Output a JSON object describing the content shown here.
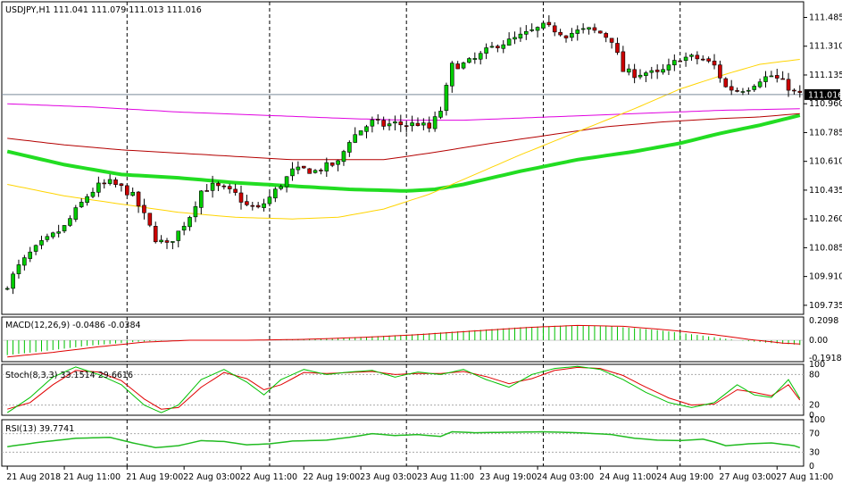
{
  "colors": {
    "background": "#ffffff",
    "frame": "#000000",
    "bull": "#00cc00",
    "bear": "#cc0000",
    "ma_fast": "#ffd400",
    "ma_mid": "#b40000",
    "ma_slow": "#e000e0",
    "ma_thick": "#22dd22",
    "price_line": "#7a8a9a",
    "macd_hist": "#00c000",
    "macd_signal": "#e00000",
    "stoch_main": "#00c000",
    "stoch_signal": "#e00000",
    "rsi": "#22bb22",
    "label_bg": "#000000",
    "label_fg": "#ffffff"
  },
  "chart_data": [
    {
      "type": "candlestick",
      "panel": "main",
      "header": "USDJPY,H1  111.041 111.079 111.013 111.016",
      "current_price_label": "111.016",
      "current_price": 111.016,
      "ylim": [
        109.68,
        111.58
      ],
      "y_ticks": [
        "111.485",
        "111.310",
        "111.135",
        "110.960",
        "110.785",
        "110.610",
        "110.435",
        "110.260",
        "110.085",
        "109.910",
        "109.735"
      ],
      "x_ticks": [
        "21 Aug 2018",
        "21 Aug 11:00",
        "21 Aug 19:00",
        "22 Aug 03:00",
        "22 Aug 11:00",
        "22 Aug 19:00",
        "23 Aug 03:00",
        "23 Aug 11:00",
        "23 Aug 19:00",
        "24 Aug 03:00",
        "24 Aug 11:00",
        "24 Aug 19:00",
        "27 Aug 03:00",
        "27 Aug 11:00"
      ],
      "candle_count": 140,
      "close_path": [
        [
          0,
          109.86
        ],
        [
          2,
          109.97
        ],
        [
          4,
          110.05
        ],
        [
          6,
          110.11
        ],
        [
          8,
          110.16
        ],
        [
          10,
          110.21
        ],
        [
          12,
          110.31
        ],
        [
          14,
          110.4
        ],
        [
          16,
          110.46
        ],
        [
          18,
          110.48
        ],
        [
          20,
          110.45
        ],
        [
          22,
          110.4
        ],
        [
          24,
          110.28
        ],
        [
          26,
          110.14
        ],
        [
          28,
          110.1
        ],
        [
          30,
          110.18
        ],
        [
          32,
          110.28
        ],
        [
          34,
          110.43
        ],
        [
          36,
          110.46
        ],
        [
          38,
          110.44
        ],
        [
          40,
          110.41
        ],
        [
          42,
          110.34
        ],
        [
          44,
          110.32
        ],
        [
          46,
          110.39
        ],
        [
          48,
          110.47
        ],
        [
          50,
          110.55
        ],
        [
          52,
          110.56
        ],
        [
          54,
          110.55
        ],
        [
          56,
          110.58
        ],
        [
          58,
          110.6
        ],
        [
          60,
          110.74
        ],
        [
          62,
          110.8
        ],
        [
          64,
          110.85
        ],
        [
          66,
          110.83
        ],
        [
          68,
          110.84
        ],
        [
          70,
          110.83
        ],
        [
          72,
          110.84
        ],
        [
          74,
          110.81
        ],
        [
          76,
          110.92
        ],
        [
          78,
          111.19
        ],
        [
          80,
          111.2
        ],
        [
          82,
          111.23
        ],
        [
          84,
          111.28
        ],
        [
          86,
          111.32
        ],
        [
          88,
          111.34
        ],
        [
          90,
          111.37
        ],
        [
          92,
          111.4
        ],
        [
          94,
          111.43
        ],
        [
          96,
          111.41
        ],
        [
          98,
          111.38
        ],
        [
          100,
          111.4
        ],
        [
          102,
          111.41
        ],
        [
          104,
          111.39
        ],
        [
          106,
          111.35
        ],
        [
          108,
          111.16
        ],
        [
          110,
          111.14
        ],
        [
          112,
          111.15
        ],
        [
          114,
          111.14
        ],
        [
          116,
          111.18
        ],
        [
          118,
          111.24
        ],
        [
          120,
          111.24
        ],
        [
          122,
          111.23
        ],
        [
          124,
          111.19
        ],
        [
          126,
          111.06
        ],
        [
          128,
          111.04
        ],
        [
          130,
          111.06
        ],
        [
          132,
          111.11
        ],
        [
          134,
          111.13
        ],
        [
          136,
          111.09
        ],
        [
          138,
          111.03
        ],
        [
          139,
          111.016
        ]
      ],
      "moving_averages": [
        {
          "color_key": "ma_thick",
          "points": [
            [
              0,
              110.67
            ],
            [
              10,
              110.59
            ],
            [
              20,
              110.53
            ],
            [
              30,
              110.51
            ],
            [
              40,
              110.48
            ],
            [
              50,
              110.46
            ],
            [
              60,
              110.44
            ],
            [
              70,
              110.43
            ],
            [
              75,
              110.44
            ],
            [
              80,
              110.47
            ],
            [
              90,
              110.55
            ],
            [
              100,
              110.62
            ],
            [
              110,
              110.67
            ],
            [
              118,
              110.72
            ],
            [
              125,
              110.78
            ],
            [
              132,
              110.83
            ],
            [
              139,
              110.89
            ]
          ]
        },
        {
          "color_key": "ma_mid",
          "points": [
            [
              0,
              110.75
            ],
            [
              10,
              110.71
            ],
            [
              20,
              110.68
            ],
            [
              30,
              110.66
            ],
            [
              40,
              110.64
            ],
            [
              50,
              110.62
            ],
            [
              60,
              110.62
            ],
            [
              66,
              110.62
            ],
            [
              74,
              110.66
            ],
            [
              85,
              110.72
            ],
            [
              95,
              110.77
            ],
            [
              105,
              110.82
            ],
            [
              115,
              110.85
            ],
            [
              125,
              110.87
            ],
            [
              132,
              110.88
            ],
            [
              139,
              110.9
            ]
          ]
        },
        {
          "color_key": "ma_slow",
          "points": [
            [
              0,
              110.96
            ],
            [
              15,
              110.94
            ],
            [
              30,
              110.91
            ],
            [
              45,
              110.89
            ],
            [
              60,
              110.87
            ],
            [
              70,
              110.86
            ],
            [
              80,
              110.86
            ],
            [
              95,
              110.88
            ],
            [
              110,
              110.9
            ],
            [
              125,
              110.92
            ],
            [
              139,
              110.93
            ]
          ]
        },
        {
          "color_key": "ma_fast",
          "points": [
            [
              0,
              110.47
            ],
            [
              10,
              110.4
            ],
            [
              20,
              110.35
            ],
            [
              30,
              110.3
            ],
            [
              40,
              110.27
            ],
            [
              50,
              110.26
            ],
            [
              58,
              110.27
            ],
            [
              66,
              110.32
            ],
            [
              74,
              110.41
            ],
            [
              82,
              110.53
            ],
            [
              90,
              110.65
            ],
            [
              100,
              110.79
            ],
            [
              110,
              110.93
            ],
            [
              118,
              111.05
            ],
            [
              126,
              111.14
            ],
            [
              132,
              111.2
            ],
            [
              139,
              111.23
            ]
          ]
        }
      ]
    },
    {
      "type": "macd_histogram",
      "panel": "macd",
      "header": "MACD(12,26,9) -0.0486 -0.0384",
      "y_ticks": [
        "0.2098",
        "0.00",
        "-0.1918"
      ],
      "ylim": [
        -0.23,
        0.25
      ],
      "hist_path": [
        [
          0,
          -0.16
        ],
        [
          6,
          -0.12
        ],
        [
          14,
          -0.06
        ],
        [
          22,
          -0.02
        ],
        [
          28,
          0.0
        ],
        [
          40,
          0.0
        ],
        [
          50,
          0.01
        ],
        [
          60,
          0.03
        ],
        [
          70,
          0.06
        ],
        [
          80,
          0.1
        ],
        [
          90,
          0.14
        ],
        [
          98,
          0.16
        ],
        [
          106,
          0.15
        ],
        [
          114,
          0.11
        ],
        [
          122,
          0.05
        ],
        [
          128,
          0.0
        ],
        [
          134,
          -0.03
        ],
        [
          139,
          -0.05
        ]
      ],
      "signal_path": [
        [
          0,
          -0.18
        ],
        [
          8,
          -0.13
        ],
        [
          16,
          -0.07
        ],
        [
          24,
          -0.02
        ],
        [
          32,
          0.0
        ],
        [
          42,
          0.0
        ],
        [
          52,
          0.01
        ],
        [
          62,
          0.03
        ],
        [
          72,
          0.06
        ],
        [
          82,
          0.1
        ],
        [
          92,
          0.14
        ],
        [
          100,
          0.16
        ],
        [
          108,
          0.15
        ],
        [
          116,
          0.11
        ],
        [
          124,
          0.06
        ],
        [
          130,
          0.01
        ],
        [
          136,
          -0.03
        ],
        [
          139,
          -0.04
        ]
      ]
    },
    {
      "type": "line",
      "panel": "stoch",
      "header": "Stoch(8,3,3) 33.1514 29.6616",
      "y_ticks": [
        "100",
        "80",
        "20",
        "0"
      ],
      "ylim": [
        0,
        100
      ],
      "levels": [
        80,
        20
      ],
      "main_path": [
        [
          0,
          5
        ],
        [
          4,
          35
        ],
        [
          8,
          75
        ],
        [
          12,
          95
        ],
        [
          16,
          80
        ],
        [
          20,
          60
        ],
        [
          24,
          20
        ],
        [
          27,
          5
        ],
        [
          30,
          20
        ],
        [
          34,
          70
        ],
        [
          38,
          90
        ],
        [
          42,
          65
        ],
        [
          45,
          40
        ],
        [
          48,
          70
        ],
        [
          52,
          90
        ],
        [
          56,
          80
        ],
        [
          60,
          85
        ],
        [
          64,
          88
        ],
        [
          68,
          75
        ],
        [
          72,
          85
        ],
        [
          76,
          80
        ],
        [
          80,
          90
        ],
        [
          84,
          70
        ],
        [
          88,
          55
        ],
        [
          92,
          80
        ],
        [
          96,
          92
        ],
        [
          100,
          96
        ],
        [
          104,
          90
        ],
        [
          108,
          70
        ],
        [
          112,
          45
        ],
        [
          116,
          25
        ],
        [
          120,
          15
        ],
        [
          124,
          25
        ],
        [
          128,
          60
        ],
        [
          131,
          40
        ],
        [
          134,
          35
        ],
        [
          137,
          70
        ],
        [
          139,
          33
        ]
      ],
      "signal_path": [
        [
          0,
          12
        ],
        [
          4,
          25
        ],
        [
          8,
          60
        ],
        [
          12,
          88
        ],
        [
          16,
          85
        ],
        [
          20,
          68
        ],
        [
          24,
          32
        ],
        [
          27,
          12
        ],
        [
          30,
          15
        ],
        [
          34,
          55
        ],
        [
          38,
          84
        ],
        [
          42,
          72
        ],
        [
          45,
          50
        ],
        [
          48,
          60
        ],
        [
          52,
          84
        ],
        [
          56,
          82
        ],
        [
          60,
          84
        ],
        [
          64,
          86
        ],
        [
          68,
          80
        ],
        [
          72,
          82
        ],
        [
          76,
          82
        ],
        [
          80,
          86
        ],
        [
          84,
          76
        ],
        [
          88,
          62
        ],
        [
          92,
          72
        ],
        [
          96,
          88
        ],
        [
          100,
          94
        ],
        [
          104,
          92
        ],
        [
          108,
          78
        ],
        [
          112,
          55
        ],
        [
          116,
          34
        ],
        [
          120,
          20
        ],
        [
          124,
          22
        ],
        [
          128,
          50
        ],
        [
          131,
          45
        ],
        [
          134,
          38
        ],
        [
          137,
          60
        ],
        [
          139,
          30
        ]
      ]
    },
    {
      "type": "line",
      "panel": "rsi",
      "header": "RSI(13) 39.7741",
      "y_ticks": [
        "100",
        "70",
        "30",
        "0"
      ],
      "ylim": [
        0,
        100
      ],
      "levels": [
        70,
        30
      ],
      "path": [
        [
          0,
          42
        ],
        [
          6,
          52
        ],
        [
          12,
          60
        ],
        [
          18,
          62
        ],
        [
          22,
          50
        ],
        [
          26,
          40
        ],
        [
          30,
          44
        ],
        [
          34,
          55
        ],
        [
          38,
          53
        ],
        [
          42,
          46
        ],
        [
          46,
          48
        ],
        [
          50,
          54
        ],
        [
          56,
          56
        ],
        [
          60,
          62
        ],
        [
          64,
          70
        ],
        [
          68,
          66
        ],
        [
          72,
          68
        ],
        [
          76,
          64
        ],
        [
          78,
          74
        ],
        [
          82,
          72
        ],
        [
          88,
          73
        ],
        [
          94,
          74
        ],
        [
          100,
          72
        ],
        [
          106,
          68
        ],
        [
          110,
          60
        ],
        [
          114,
          56
        ],
        [
          118,
          55
        ],
        [
          122,
          58
        ],
        [
          124,
          52
        ],
        [
          126,
          44
        ],
        [
          130,
          48
        ],
        [
          134,
          50
        ],
        [
          138,
          44
        ],
        [
          139,
          39.8
        ]
      ]
    }
  ]
}
